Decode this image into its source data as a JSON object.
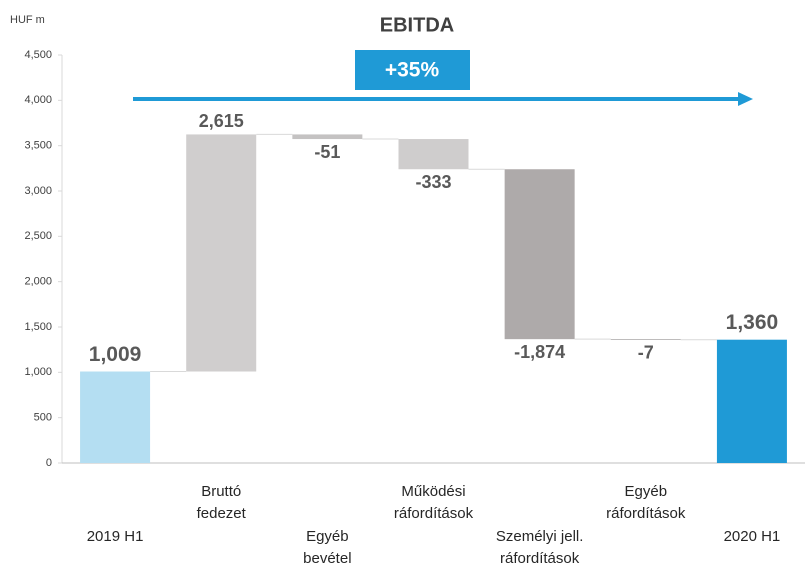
{
  "chart_data": {
    "type": "waterfall",
    "title": "EBITDA",
    "y_axis_label": "HUF m",
    "annotation": "+35%",
    "annotation_color": "#1f9ad6",
    "categories": [
      [
        "2019 H1"
      ],
      [
        "Bruttó",
        "fedezet"
      ],
      [
        "Egyéb",
        "bevétel"
      ],
      [
        "Működési",
        "ráfordítások"
      ],
      [
        "Személyi jell.",
        "ráfordítások"
      ],
      [
        "Egyéb",
        "ráfordítások"
      ],
      [
        "2020 H1"
      ]
    ],
    "values": [
      1009,
      2615,
      -51,
      -333,
      -1874,
      -7,
      1360
    ],
    "value_labels": [
      "1,009",
      "2,615",
      "-51",
      "-333",
      "-1,874",
      "-7",
      "1,360"
    ],
    "measure": [
      "absolute",
      "relative",
      "relative",
      "relative",
      "relative",
      "relative",
      "absolute"
    ],
    "colors": [
      "#b4def2",
      "#d0cece",
      "#c4c2c2",
      "#cfcdcd",
      "#aeaaaa",
      "#9a9696",
      "#1f9ad6"
    ],
    "ylim": [
      0,
      4500
    ],
    "yticks": [
      0,
      500,
      {
        "value": 1000,
        "label": "1,000"
      },
      {
        "value": 1500,
        "label": "1,500"
      },
      {
        "value": 2000,
        "label": "2,000"
      },
      {
        "value": 2500,
        "label": "2,500"
      },
      {
        "value": 3000,
        "label": "3,000"
      },
      {
        "value": 3500,
        "label": "3,500"
      },
      {
        "value": 4000,
        "label": "4,000"
      },
      {
        "value": 4500,
        "label": "4,500"
      }
    ],
    "grid": false
  }
}
